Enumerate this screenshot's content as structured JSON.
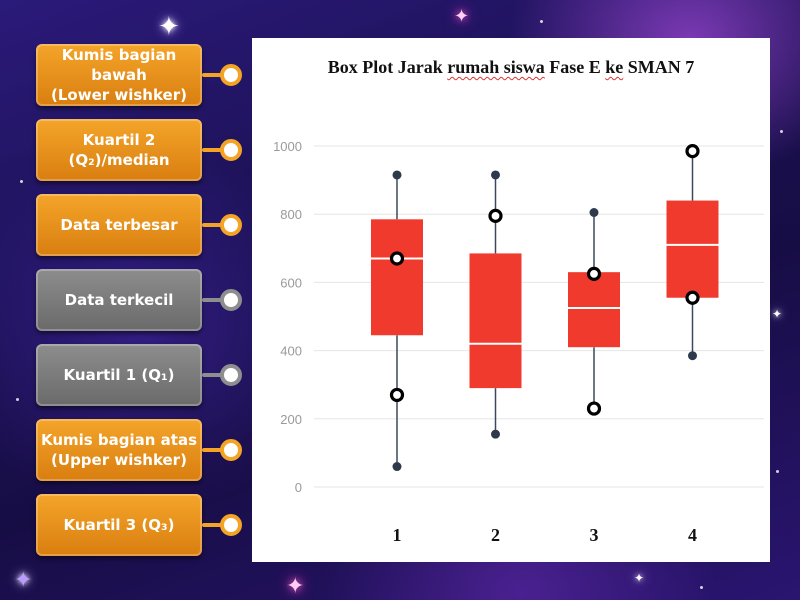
{
  "cards": [
    {
      "id": "lower-whisker",
      "label": "Kumis bagian bawah\n(Lower wishker)",
      "color": "orange"
    },
    {
      "id": "median",
      "label": "Kuartil 2\n(Q₂)/median",
      "color": "orange"
    },
    {
      "id": "max",
      "label": "Data terbesar",
      "color": "orange"
    },
    {
      "id": "min",
      "label": "Data terkecil",
      "color": "gray"
    },
    {
      "id": "q1",
      "label": "Kuartil 1 (Q₁)",
      "color": "gray"
    },
    {
      "id": "upper-whisker",
      "label": "Kumis bagian atas\n(Upper wishker)",
      "color": "orange"
    },
    {
      "id": "q3",
      "label": "Kuartil 3 (Q₃)",
      "color": "orange"
    }
  ],
  "colors": {
    "orange": "#f3a425",
    "gray": "#8e8e8e",
    "box_fill": "#f03a2e",
    "whisker": "#3a4a5c",
    "grid": "#e6e6e6"
  },
  "chart_data": {
    "type": "box",
    "title_parts": [
      "Box Plot Jarak ",
      "rumah siswa",
      " Fase E ",
      "ke",
      " SMAN 7"
    ],
    "categories": [
      "1",
      "2",
      "3",
      "4"
    ],
    "ylim": [
      0,
      1000
    ],
    "yticks": [
      0,
      200,
      400,
      600,
      800,
      1000
    ],
    "grid": true,
    "boxes": [
      {
        "min": 60,
        "q1": 445,
        "median": 670,
        "q3": 785,
        "max": 915
      },
      {
        "min": 155,
        "q1": 290,
        "median": 420,
        "q3": 685,
        "max": 915
      },
      {
        "min": 230,
        "q1": 410,
        "median": 525,
        "q3": 630,
        "max": 805
      },
      {
        "min": 385,
        "q1": 555,
        "median": 710,
        "q3": 840,
        "max": 985
      }
    ],
    "target_points": [
      {
        "box": 1,
        "value": 670
      },
      {
        "box": 1,
        "value": 270
      },
      {
        "box": 2,
        "value": 795
      },
      {
        "box": 3,
        "value": 625
      },
      {
        "box": 3,
        "value": 230
      },
      {
        "box": 4,
        "value": 985
      },
      {
        "box": 4,
        "value": 555
      }
    ]
  }
}
